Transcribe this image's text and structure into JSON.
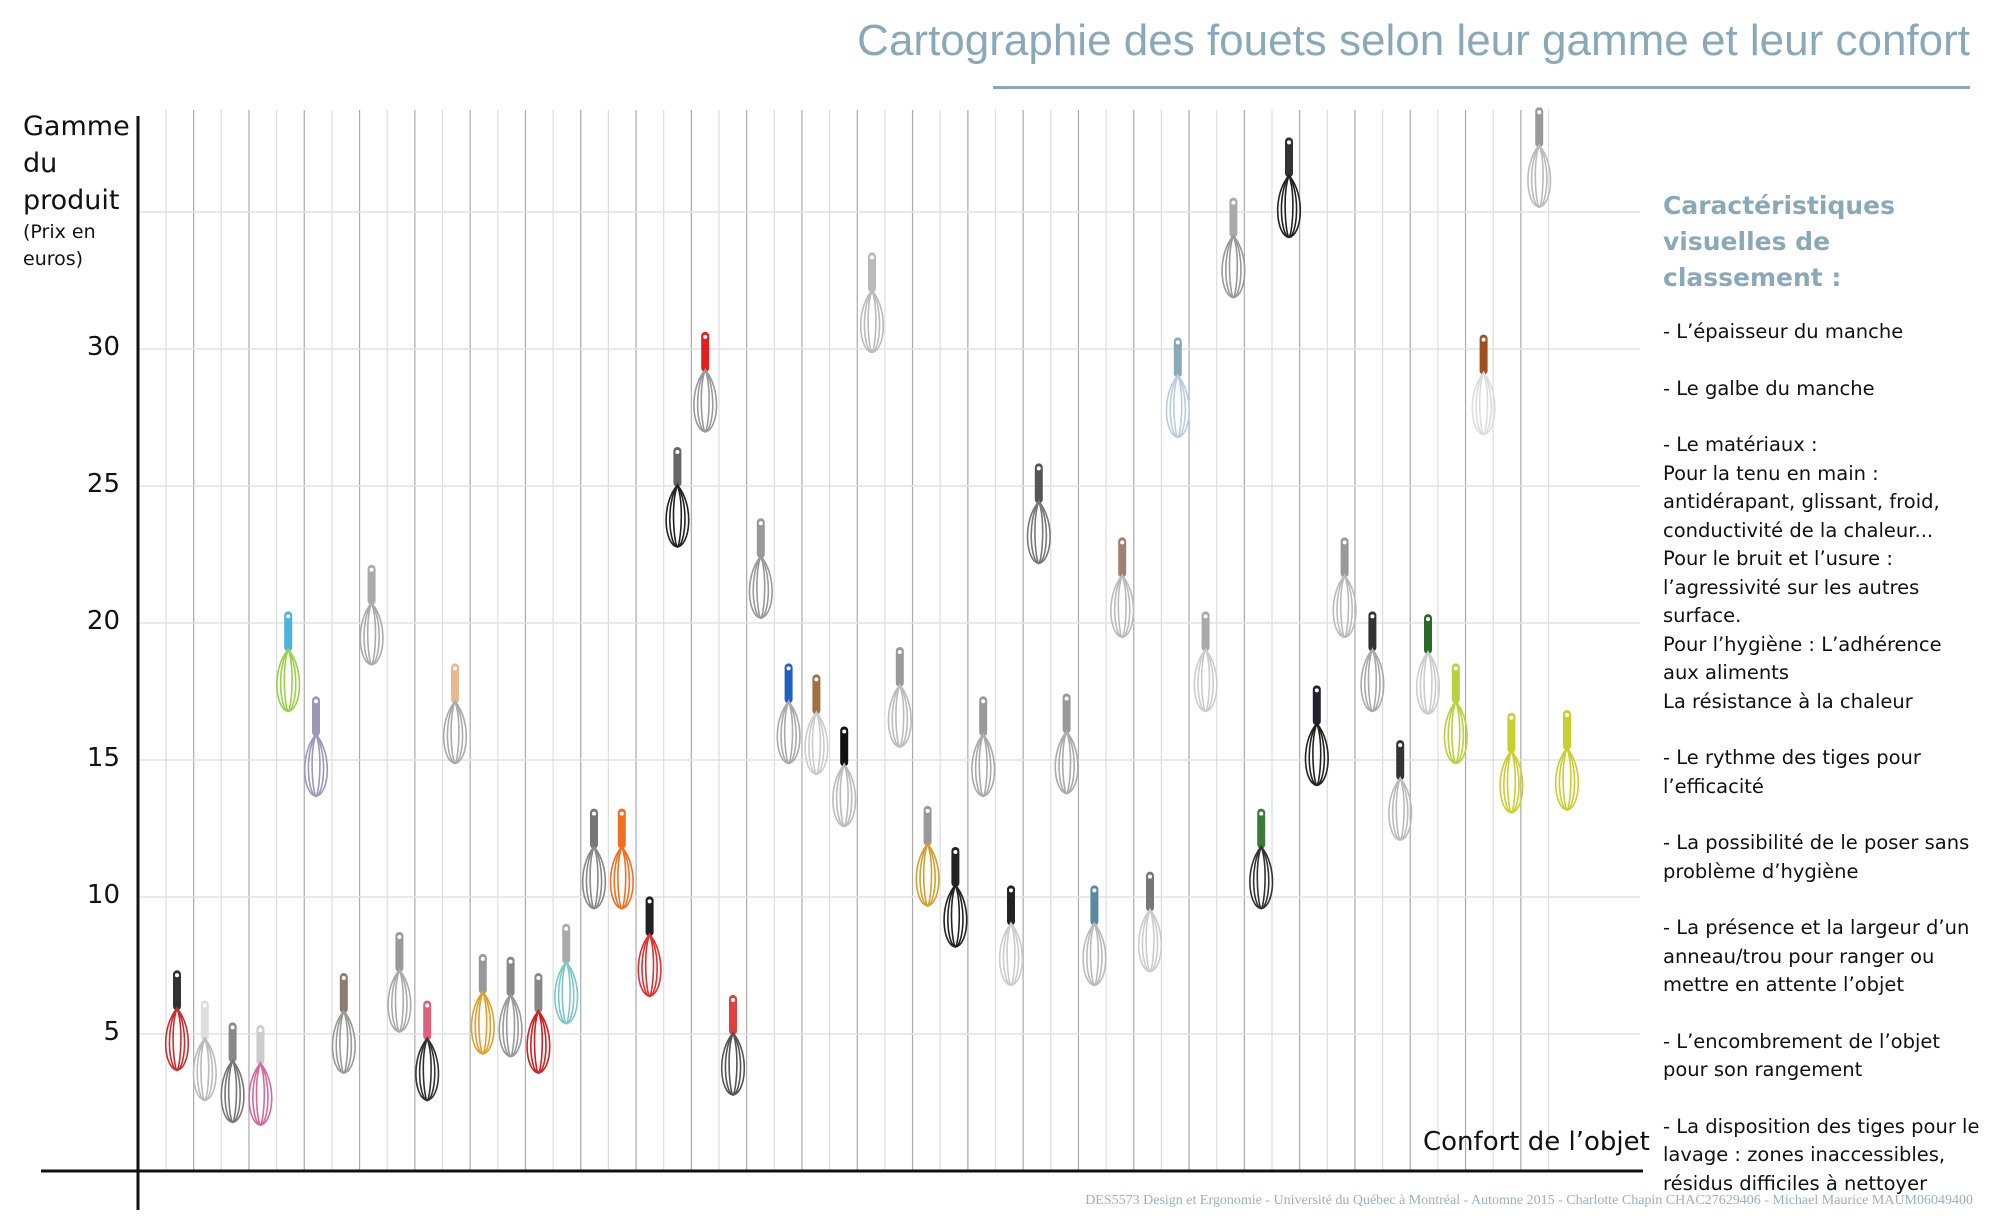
{
  "title": "Cartographie des fouets selon leur gamme et leur confort",
  "footer": "DES5573 Design et Ergonomie - Université du Québec à Montréal - Automne 2015 - Charlotte Chapin CHAC27629406 - Michael Maurice MAUM06049400",
  "panel": {
    "heading": "Caractéristiques visuelles de classement :",
    "items": [
      "- L’épaisseur du manche",
      "- Le galbe du manche",
      "- Le matériaux :\nPour la tenu en main : antidérapant,  glissant, froid, conductivité de la chaleur...\nPour le bruit et l’usure : l’agressivité sur les autres surface.\nPour l’hygiène : L’adhérence aux aliments\nLa résistance à la chaleur",
      "- Le rythme des tiges pour l’efficacité",
      "- La possibilité de le poser sans problème d’hygiène",
      "- La présence et la largeur d’un anneau/trou pour ranger ou mettre en attente l’objet",
      "- L’encombrement de l’objet pour son rangement",
      "- La disposition des tiges pour le lavage : zones inaccessibles, résidus difficiles à nettoyer"
    ]
  },
  "chart_data": {
    "type": "scatter",
    "title": "Cartographie des fouets selon leur gamme et leur confort",
    "ylabel": "Gamme du produit",
    "ylabel_sub": "(Prix en euros)",
    "xlabel": "Confort de l’objet",
    "ylim": [
      0,
      38.5
    ],
    "yticks": [
      "5",
      "10",
      "15",
      "20",
      "25",
      "30"
    ],
    "ytick_values": [
      5,
      10,
      15,
      20,
      25,
      30
    ],
    "grid": true,
    "marker": "whisk photo",
    "points": [
      {
        "x": 1,
        "price": 5.5,
        "handle": "#333333",
        "wire": "#c83030"
      },
      {
        "x": 2,
        "price": 4.4,
        "handle": "#dddddd",
        "wire": "#bbbbbb"
      },
      {
        "x": 3,
        "price": 3.6,
        "handle": "#888888",
        "wire": "#777777"
      },
      {
        "x": 4,
        "price": 3.5,
        "handle": "#cccccc",
        "wire": "#d46a9a"
      },
      {
        "x": 5,
        "price": 18.6,
        "handle": "#4ab3e0",
        "wire": "#9ad04a"
      },
      {
        "x": 6,
        "price": 15.5,
        "handle": "#9a9ab8",
        "wire": "#9a9ab8"
      },
      {
        "x": 7,
        "price": 5.4,
        "handle": "#8a7e70",
        "wire": "#999999"
      },
      {
        "x": 8,
        "price": 20.3,
        "handle": "#aaaaaa",
        "wire": "#aaaaaa"
      },
      {
        "x": 9,
        "price": 6.9,
        "handle": "#999999",
        "wire": "#aaaaaa"
      },
      {
        "x": 10,
        "price": 4.4,
        "handle": "#e0607a",
        "wire": "#333333"
      },
      {
        "x": 11,
        "price": 16.7,
        "handle": "#e8b890",
        "wire": "#aaaaaa"
      },
      {
        "x": 12,
        "price": 6.1,
        "handle": "#999999",
        "wire": "#e0a030"
      },
      {
        "x": 13,
        "price": 6.0,
        "handle": "#888888",
        "wire": "#999999"
      },
      {
        "x": 14,
        "price": 5.4,
        "handle": "#888888",
        "wire": "#d02020"
      },
      {
        "x": 15,
        "price": 7.2,
        "handle": "#aaaaaa",
        "wire": "#7cc8c8"
      },
      {
        "x": 16,
        "price": 11.4,
        "handle": "#777777",
        "wire": "#888888"
      },
      {
        "x": 17,
        "price": 11.4,
        "handle": "#f07020",
        "wire": "#f07020"
      },
      {
        "x": 18,
        "price": 8.2,
        "handle": "#222222",
        "wire": "#e03030"
      },
      {
        "x": 19,
        "price": 24.6,
        "handle": "#666666",
        "wire": "#222222"
      },
      {
        "x": 20,
        "price": 28.8,
        "handle": "#e02020",
        "wire": "#999999"
      },
      {
        "x": 21,
        "price": 4.6,
        "handle": "#e04040",
        "wire": "#555555"
      },
      {
        "x": 22,
        "price": 22.0,
        "handle": "#999999",
        "wire": "#999999"
      },
      {
        "x": 23,
        "price": 16.7,
        "handle": "#2060c0",
        "wire": "#aaaaaa"
      },
      {
        "x": 24,
        "price": 16.3,
        "handle": "#a07040",
        "wire": "#cccccc"
      },
      {
        "x": 25,
        "price": 14.4,
        "handle": "#111111",
        "wire": "#bbbbbb"
      },
      {
        "x": 26,
        "price": 31.7,
        "handle": "#bbbbbb",
        "wire": "#bbbbbb"
      },
      {
        "x": 27,
        "price": 17.3,
        "handle": "#999999",
        "wire": "#bbbbbb"
      },
      {
        "x": 28,
        "price": 11.5,
        "handle": "#999999",
        "wire": "#d0a030"
      },
      {
        "x": 29,
        "price": 10.0,
        "handle": "#222222",
        "wire": "#222222"
      },
      {
        "x": 30,
        "price": 15.5,
        "handle": "#999999",
        "wire": "#aaaaaa"
      },
      {
        "x": 31,
        "price": 8.6,
        "handle": "#222222",
        "wire": "#cccccc"
      },
      {
        "x": 32,
        "price": 24.0,
        "handle": "#555555",
        "wire": "#777777"
      },
      {
        "x": 33,
        "price": 15.6,
        "handle": "#999999",
        "wire": "#aaaaaa"
      },
      {
        "x": 34,
        "price": 8.6,
        "handle": "#5a8aa0",
        "wire": "#bbbbbb"
      },
      {
        "x": 35,
        "price": 21.3,
        "handle": "#a08070",
        "wire": "#bbbbbb"
      },
      {
        "x": 36,
        "price": 9.1,
        "handle": "#777777",
        "wire": "#cccccc"
      },
      {
        "x": 37,
        "price": 28.6,
        "handle": "#88aabb",
        "wire": "#bbccdd"
      },
      {
        "x": 38,
        "price": 18.6,
        "handle": "#aaaaaa",
        "wire": "#cccccc"
      },
      {
        "x": 39,
        "price": 33.7,
        "handle": "#aaaaaa",
        "wire": "#999999"
      },
      {
        "x": 40,
        "price": 11.4,
        "handle": "#3a7a3a",
        "wire": "#333333"
      },
      {
        "x": 41,
        "price": 35.9,
        "handle": "#333333",
        "wire": "#222222"
      },
      {
        "x": 42,
        "price": 15.9,
        "handle": "#222233",
        "wire": "#222222"
      },
      {
        "x": 43,
        "price": 21.3,
        "handle": "#999999",
        "wire": "#bbbbbb"
      },
      {
        "x": 44,
        "price": 18.6,
        "handle": "#333333",
        "wire": "#aaaaaa"
      },
      {
        "x": 45,
        "price": 13.9,
        "handle": "#333333",
        "wire": "#bbbbbb"
      },
      {
        "x": 46,
        "price": 18.5,
        "handle": "#2a6a2a",
        "wire": "#cccccc"
      },
      {
        "x": 47,
        "price": 16.7,
        "handle": "#bbd040",
        "wire": "#bbd040"
      },
      {
        "x": 48,
        "price": 28.7,
        "handle": "#a05020",
        "wire": "#dddddd"
      },
      {
        "x": 49,
        "price": 14.9,
        "handle": "#c8d030",
        "wire": "#c8d030"
      },
      {
        "x": 50,
        "price": 37.0,
        "handle": "#999999",
        "wire": "#bbbbbb"
      },
      {
        "x": 51,
        "price": 15.0,
        "handle": "#c8d030",
        "wire": "#c8d030"
      }
    ]
  },
  "colors": {
    "accent": "#8aa9b8",
    "axis": "#111111",
    "grid_dark": "#aaaaaa",
    "grid_light": "#dddddd"
  }
}
